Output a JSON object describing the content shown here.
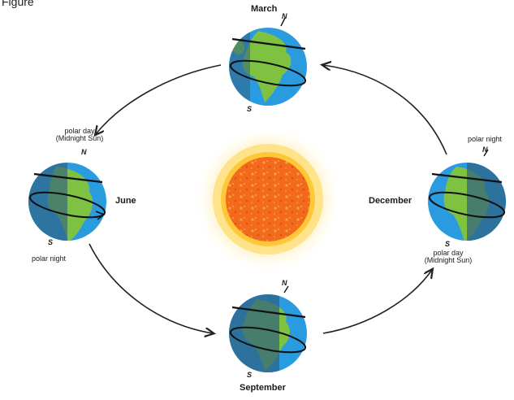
{
  "corner_caption": "Figure",
  "months": {
    "march": "March",
    "june": "June",
    "september": "September",
    "december": "December"
  },
  "labels": {
    "june_top": "polar day",
    "june_top_sub": "(Midnight Sun)",
    "june_bottom": "polar night",
    "december_top": "polar night",
    "december_bottom": "polar day",
    "december_bottom_sub": "(Midnight Sun)"
  },
  "poles": {
    "north": "N",
    "south": "S"
  },
  "colors": {
    "ocean": "#2b9be0",
    "land": "#7fc241",
    "night_ocean": "#2f5f80",
    "night_land": "#4d6f3a",
    "sun_core": "#f26b1d",
    "sun_glow": "#fde27a",
    "arrow": "#222222"
  }
}
